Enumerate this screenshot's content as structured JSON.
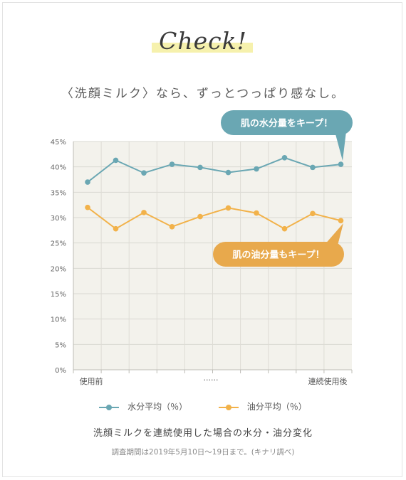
{
  "header": {
    "check": "Check!",
    "subtitle": "〈洗顔ミルク〉なら、ずっとつっぱり感なし。"
  },
  "callouts": {
    "water": "肌の水分量をキープ！",
    "oil": "肌の油分量もキープ！"
  },
  "caption": "洗顔ミルクを連続使用した場合の水分・油分変化",
  "note": "調査期間は2019年5月10日〜19日まで。(キナリ調べ)",
  "colors": {
    "water": "#6aa7b3",
    "oil": "#f2b24a",
    "water_bubble": "#6aa7b3",
    "oil_bubble": "#e8a94c",
    "plot_bg": "#f3f2ec"
  },
  "chart_data": {
    "type": "line",
    "categories": [
      "使用前",
      "",
      "",
      "",
      "",
      "······",
      "",
      "",
      "",
      "連続使用後"
    ],
    "series": [
      {
        "name": "水分平均（％）",
        "values": [
          37,
          41.3,
          38.8,
          40.5,
          39.9,
          38.9,
          39.6,
          41.8,
          39.9,
          40.5
        ]
      },
      {
        "name": "油分平均（％）",
        "values": [
          32,
          27.8,
          31,
          28.2,
          30.2,
          31.9,
          30.9,
          27.8,
          30.8,
          29.4
        ]
      }
    ],
    "yticks": [
      "0%",
      "5%",
      "10%",
      "15%",
      "20%",
      "25%",
      "30%",
      "35%",
      "40%",
      "45%"
    ],
    "ylim": [
      0,
      45
    ],
    "grid": true,
    "legend": "bottom"
  }
}
